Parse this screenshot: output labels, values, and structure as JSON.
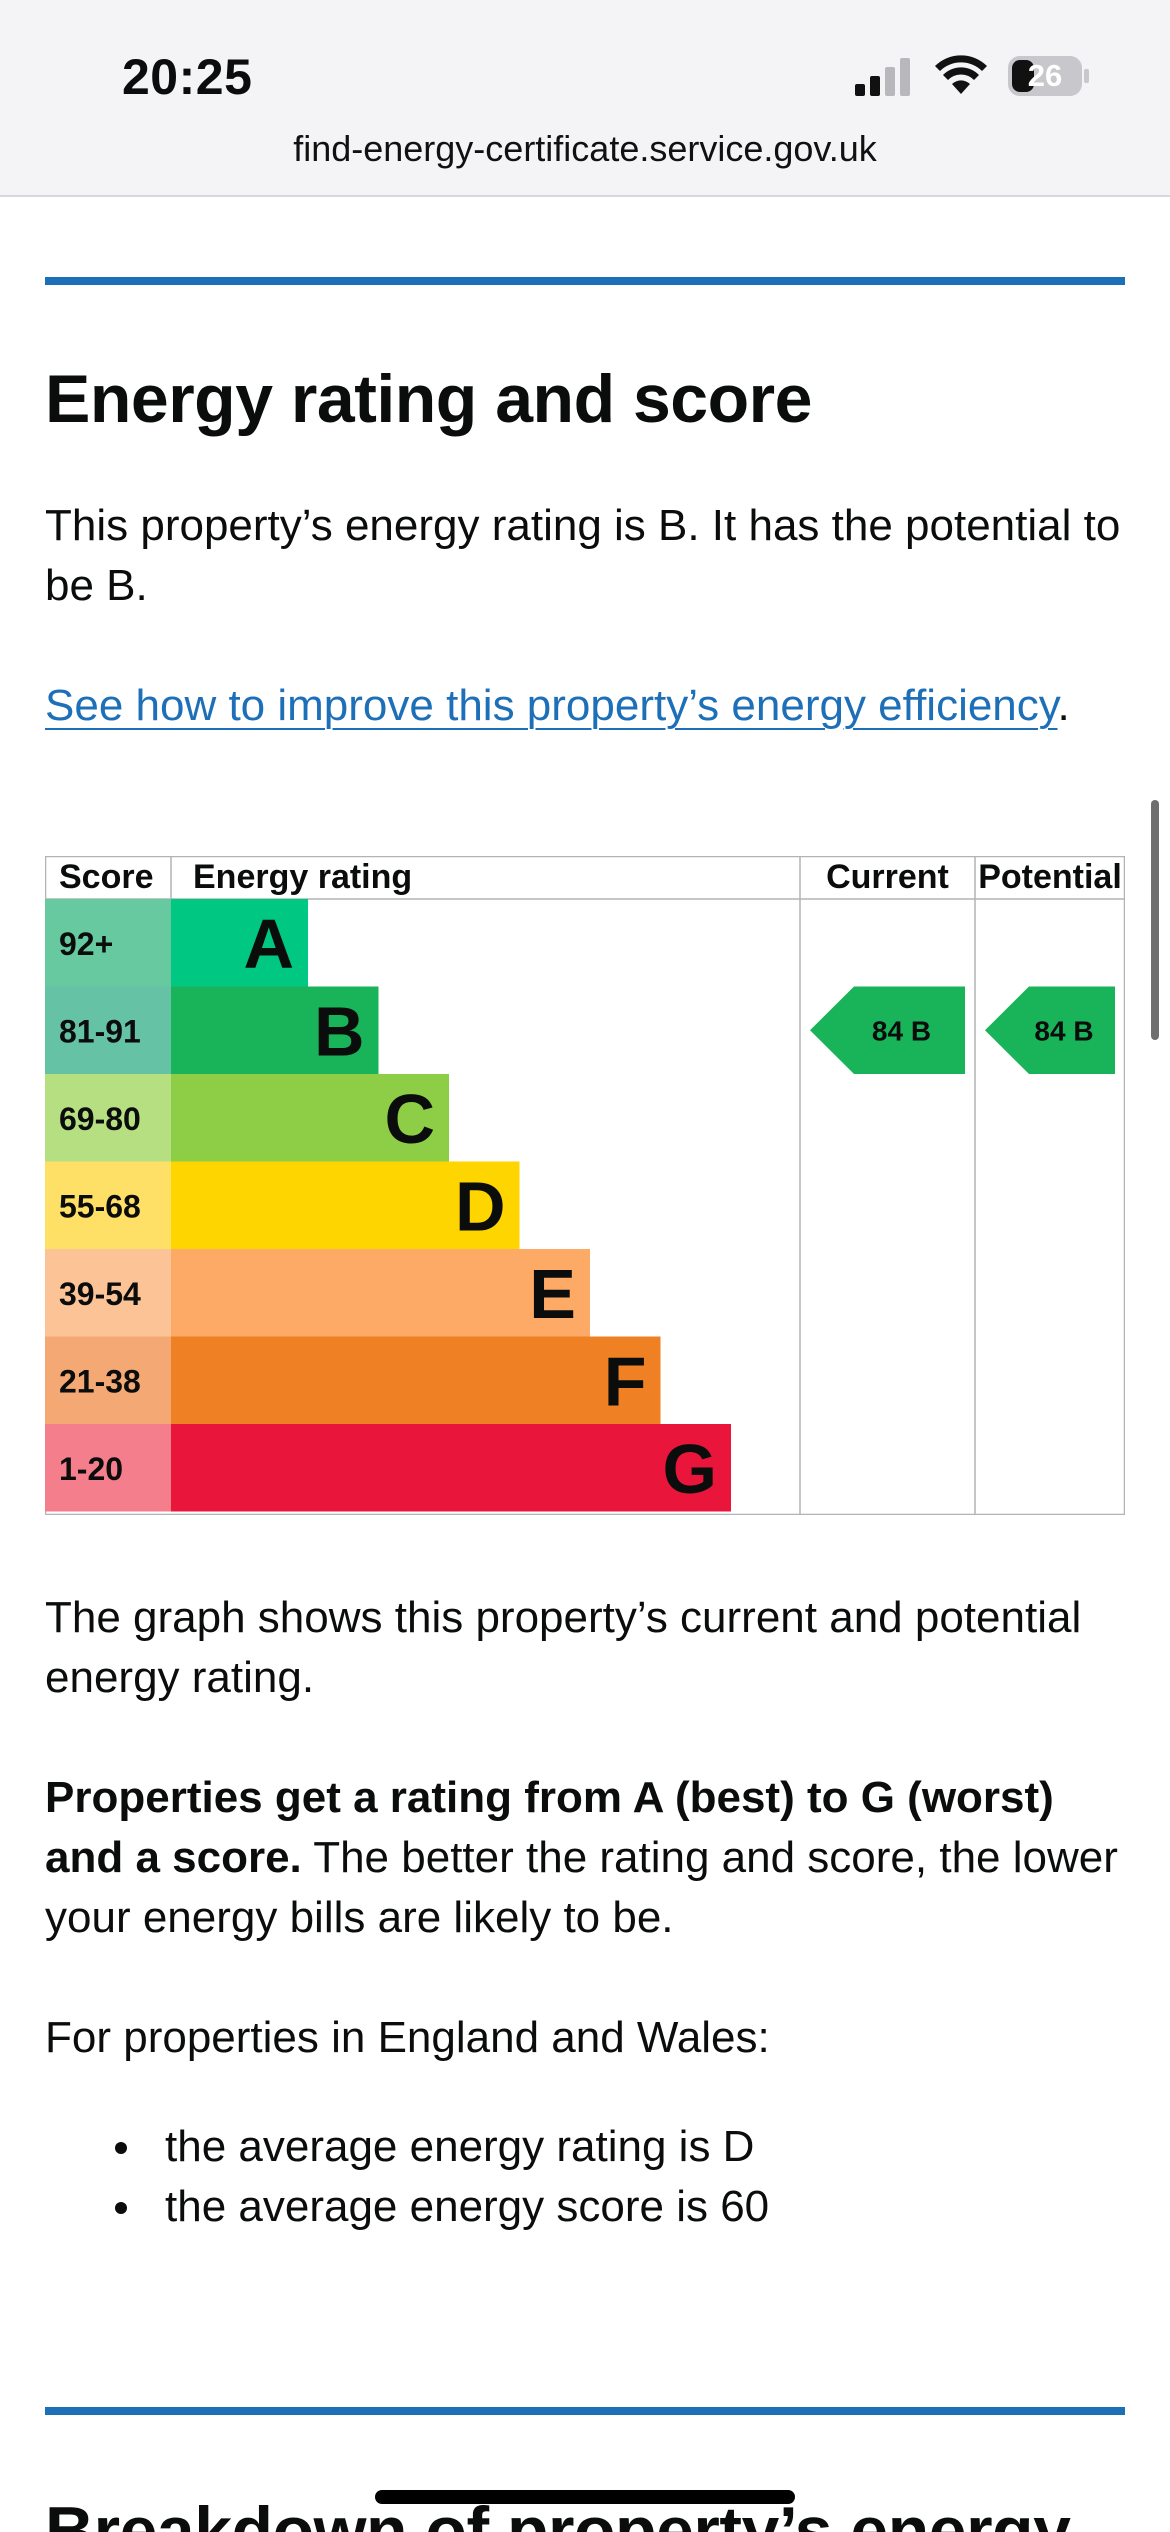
{
  "status_bar": {
    "time": "20:25",
    "battery": "26",
    "url": "find-energy-certificate.service.gov.uk"
  },
  "section": {
    "title": "Energy rating and score",
    "intro": "This property’s energy rating is B. It has the potential to be B.",
    "improve_link": "See how to improve this property’s energy efficiency",
    "improve_suffix": "."
  },
  "chart_data": {
    "type": "table",
    "headers": {
      "score": "Score",
      "rating": "Energy rating",
      "current": "Current",
      "potential": "Potential"
    },
    "bands": [
      {
        "score": "92+",
        "letter": "A",
        "score_color": "#66c9a0",
        "bar_color": "#00c781"
      },
      {
        "score": "81-91",
        "letter": "B",
        "score_color": "#66c2a5",
        "bar_color": "#19b459"
      },
      {
        "score": "69-80",
        "letter": "C",
        "score_color": "#b6df81",
        "bar_color": "#8dce46"
      },
      {
        "score": "55-68",
        "letter": "D",
        "score_color": "#ffe066",
        "bar_color": "#ffd500"
      },
      {
        "score": "39-54",
        "letter": "E",
        "score_color": "#fcc397",
        "bar_color": "#fcaa65"
      },
      {
        "score": "21-38",
        "letter": "F",
        "score_color": "#f4a974",
        "bar_color": "#ef8023"
      },
      {
        "score": "1-20",
        "letter": "G",
        "score_color": "#f47e8b",
        "bar_color": "#e9153b"
      }
    ],
    "current": {
      "score": 84,
      "letter": "B",
      "color": "#19b459"
    },
    "potential": {
      "score": 84,
      "letter": "B",
      "color": "#19b459"
    }
  },
  "explanation": {
    "graph_text": "The graph shows this property’s current and potential energy rating.",
    "rating_bold": "Properties get a rating from A (best) to G (worst) and a score.",
    "rating_rest": " The better the rating and score, the lower your energy bills are likely to be.",
    "region_intro": "For properties in England and Wales:",
    "bullets": [
      "the average energy rating is D",
      "the average energy score is 60"
    ]
  },
  "next_section": {
    "title": "Breakdown of property’s energy"
  }
}
